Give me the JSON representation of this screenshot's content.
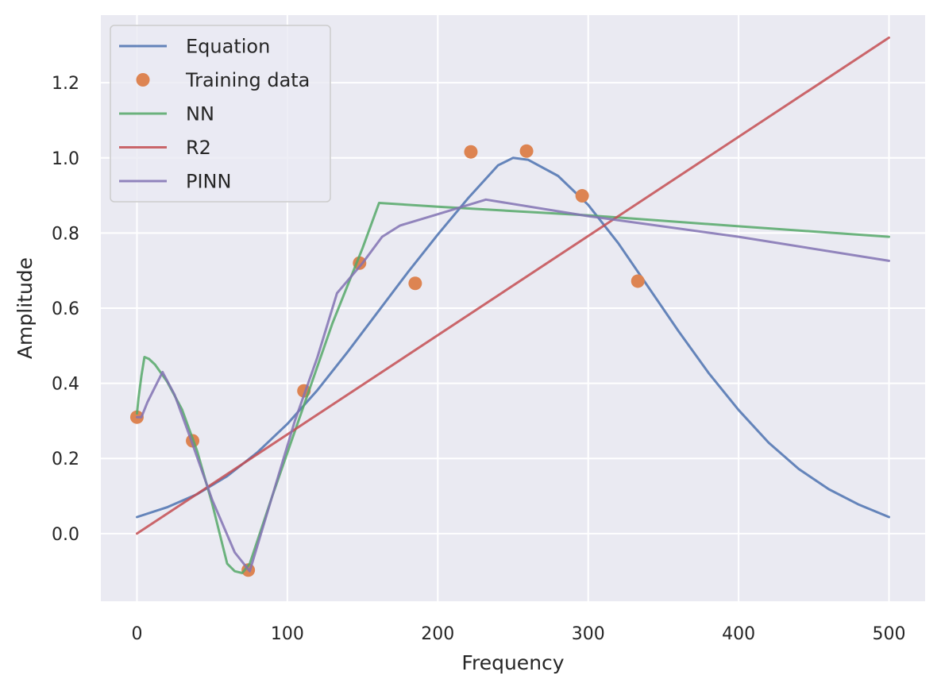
{
  "chart_data": {
    "type": "line",
    "title": "",
    "xlabel": "Frequency",
    "ylabel": "Amplitude",
    "xlim": [
      -24,
      524
    ],
    "ylim": [
      -0.18,
      1.38
    ],
    "xticks": [
      0,
      100,
      200,
      300,
      400,
      500
    ],
    "xtick_labels": [
      "0",
      "100",
      "200",
      "300",
      "400",
      "500"
    ],
    "yticks": [
      0.0,
      0.2,
      0.4,
      0.6,
      0.8,
      1.0,
      1.2
    ],
    "ytick_labels": [
      "0.0",
      "0.2",
      "0.4",
      "0.6",
      "0.8",
      "1.0",
      "1.2"
    ],
    "grid": true,
    "legend_position": "top-left",
    "colors": {
      "background": "#EAEAF2",
      "grid": "#FFFFFF",
      "equation": "#4C72B0",
      "training": "#DD8452",
      "nn": "#55A868",
      "r2": "#C44E52",
      "pinn": "#8172B3"
    },
    "series": [
      {
        "name": "Equation",
        "kind": "line",
        "color": "#4C72B0",
        "x": [
          0,
          20,
          40,
          60,
          80,
          100,
          120,
          140,
          160,
          180,
          200,
          220,
          240,
          250,
          260,
          280,
          300,
          320,
          340,
          360,
          380,
          400,
          420,
          440,
          460,
          480,
          500
        ],
        "y": [
          0.044,
          0.07,
          0.105,
          0.153,
          0.216,
          0.292,
          0.382,
          0.483,
          0.589,
          0.695,
          0.796,
          0.892,
          0.98,
          1.0,
          0.995,
          0.952,
          0.875,
          0.773,
          0.656,
          0.539,
          0.428,
          0.329,
          0.242,
          0.172,
          0.118,
          0.077,
          0.044
        ]
      },
      {
        "name": "Training data",
        "kind": "scatter",
        "color": "#DD8452",
        "x": [
          0,
          37,
          74,
          111,
          148,
          185,
          222,
          259,
          296,
          333
        ],
        "y": [
          0.31,
          0.247,
          -0.097,
          0.38,
          0.72,
          0.666,
          1.016,
          1.018,
          0.899,
          0.672
        ]
      },
      {
        "name": "NN",
        "kind": "line",
        "color": "#55A868",
        "x": [
          0,
          1,
          3,
          5,
          8,
          12,
          20,
          30,
          40,
          50,
          55,
          60,
          65,
          70,
          75,
          90,
          110,
          130,
          150,
          161,
          200,
          300,
          400,
          500
        ],
        "y": [
          0.32,
          0.36,
          0.42,
          0.47,
          0.465,
          0.45,
          0.405,
          0.33,
          0.22,
          0.08,
          0.0,
          -0.08,
          -0.1,
          -0.105,
          -0.08,
          0.1,
          0.33,
          0.56,
          0.76,
          0.88,
          0.87,
          0.847,
          0.818,
          0.79
        ]
      },
      {
        "name": "R2",
        "kind": "line",
        "color": "#C44E52",
        "x": [
          0,
          500
        ],
        "y": [
          0.0,
          1.32
        ]
      },
      {
        "name": "PINN",
        "kind": "line",
        "color": "#8172B3",
        "x": [
          0,
          3,
          7,
          12,
          17,
          25,
          35,
          50,
          65,
          75,
          90,
          105,
          120,
          133,
          150,
          163,
          175,
          200,
          232,
          300,
          400,
          500
        ],
        "y": [
          0.31,
          0.31,
          0.35,
          0.39,
          0.43,
          0.37,
          0.26,
          0.09,
          -0.05,
          -0.1,
          0.1,
          0.3,
          0.47,
          0.64,
          0.72,
          0.79,
          0.82,
          0.85,
          0.889,
          0.845,
          0.79,
          0.726
        ]
      }
    ]
  }
}
